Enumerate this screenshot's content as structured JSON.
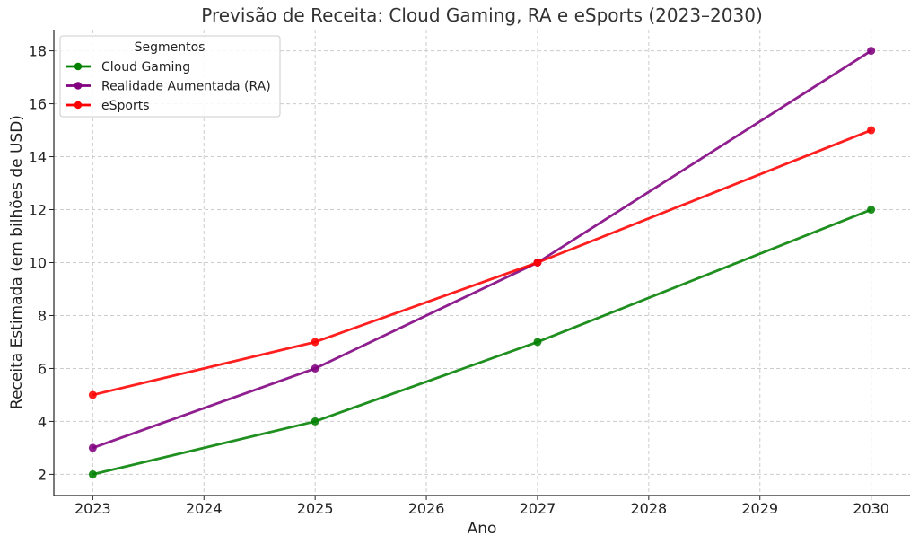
{
  "chart_data": {
    "type": "line",
    "title": "Previsão de Receita: Cloud Gaming, RA e eSports (2023–2030)",
    "xlabel": "Ano",
    "ylabel": "Receita Estimada (em bilhões de USD)",
    "x_ticks": [
      "2023",
      "2024",
      "2025",
      "2026",
      "2027",
      "2028",
      "2029",
      "2030"
    ],
    "y_ticks": [
      "2",
      "4",
      "6",
      "8",
      "10",
      "12",
      "14",
      "16",
      "18"
    ],
    "xlim": [
      2022.65,
      2030.35
    ],
    "ylim": [
      1.2,
      18.8
    ],
    "grid": true,
    "legend": {
      "title": "Segmentos",
      "placement": "top-left"
    },
    "series": [
      {
        "name": "Cloud Gaming",
        "color": "#008000",
        "x": [
          2023,
          2025,
          2027,
          2030
        ],
        "y": [
          2,
          4,
          7,
          12
        ]
      },
      {
        "name": "Realidade Aumentada (RA)",
        "color": "#800080",
        "x": [
          2023,
          2025,
          2027,
          2030
        ],
        "y": [
          3,
          6,
          10,
          18
        ]
      },
      {
        "name": "eSports",
        "color": "#ff0000",
        "x": [
          2023,
          2025,
          2027,
          2030
        ],
        "y": [
          5,
          7,
          10,
          15
        ]
      }
    ]
  }
}
